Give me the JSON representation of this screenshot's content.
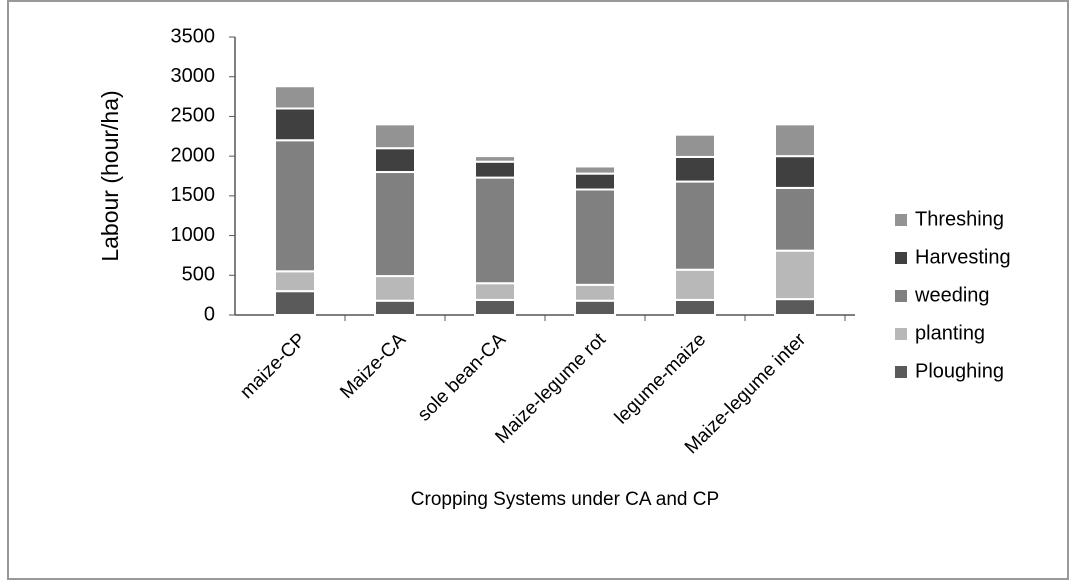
{
  "chart_data": {
    "type": "stacked-bar",
    "y_label": "Labour (hour/ha)",
    "x_label": "Cropping Systems under CA and CP",
    "categories": [
      "maize-CP",
      "Maize-CA",
      "sole bean-CA",
      "Maize-legume rot",
      "legume-maize",
      "Maize-legume inter"
    ],
    "series": [
      {
        "name": "Ploughing",
        "color": "#5a5a5a",
        "values": [
          300,
          180,
          190,
          180,
          190,
          200
        ]
      },
      {
        "name": "planting",
        "color": "#b8b8b8",
        "values": [
          250,
          310,
          210,
          200,
          380,
          610
        ]
      },
      {
        "name": "weeding",
        "color": "#808080",
        "values": [
          1650,
          1310,
          1330,
          1200,
          1110,
          790
        ]
      },
      {
        "name": "Harvesting",
        "color": "#404040",
        "values": [
          400,
          300,
          200,
          200,
          310,
          400
        ]
      },
      {
        "name": "Threshing",
        "color": "#939393",
        "values": [
          280,
          300,
          70,
          90,
          280,
          400
        ]
      }
    ],
    "ylim": [
      0,
      3500
    ],
    "yticks": [
      0,
      500,
      1000,
      1500,
      2000,
      2500,
      3000,
      3500
    ]
  }
}
